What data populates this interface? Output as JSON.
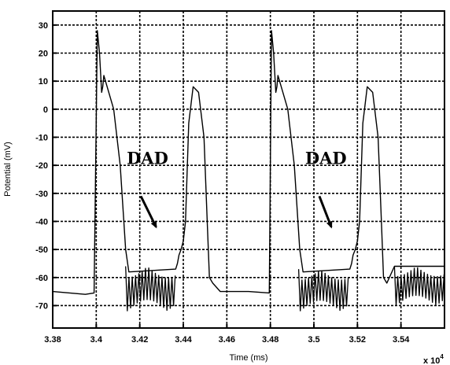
{
  "chart_data": {
    "type": "line",
    "xlabel": "Time (ms)",
    "ylabel": "Potential (mV)",
    "x_exponent_label": "x 10",
    "x_exponent_power": "4",
    "xlim": [
      3.38,
      3.56
    ],
    "ylim": [
      -78,
      35
    ],
    "x_ticks": [
      3.38,
      3.4,
      3.42,
      3.44,
      3.46,
      3.48,
      3.5,
      3.52,
      3.54
    ],
    "x_tick_labels": [
      "3.38",
      "3.4",
      "3.42",
      "3.44",
      "3.46",
      "3.48",
      "3.5",
      "3.52",
      "3.54"
    ],
    "y_ticks": [
      30,
      20,
      10,
      0,
      -10,
      -20,
      -30,
      -40,
      -50,
      -60,
      -70
    ],
    "y_tick_labels": [
      "30",
      "20",
      "10",
      "0",
      "-10",
      "-20",
      "-30",
      "-40",
      "-50",
      "-60",
      "-70"
    ],
    "grid": true,
    "line_color": "#000000",
    "series": [
      {
        "points": [
          [
            3.38,
            -65
          ],
          [
            3.395,
            -66
          ],
          [
            3.399,
            -65.5
          ],
          [
            3.4005,
            28
          ],
          [
            3.4015,
            20
          ],
          [
            3.4025,
            6
          ],
          [
            3.403,
            8
          ],
          [
            3.4035,
            12
          ],
          [
            3.405,
            8
          ],
          [
            3.408,
            0
          ],
          [
            3.411,
            -20
          ],
          [
            3.4135,
            -50
          ],
          [
            3.415,
            -58
          ],
          [
            3.4365,
            -57
          ],
          [
            3.4373,
            -55
          ],
          [
            3.438,
            -52
          ],
          [
            3.439,
            -50
          ],
          [
            3.44,
            -47
          ],
          [
            3.441,
            -40
          ],
          [
            3.4425,
            -5
          ],
          [
            3.4445,
            8
          ],
          [
            3.447,
            6
          ],
          [
            3.4495,
            -10
          ],
          [
            3.451,
            -40
          ],
          [
            3.452,
            -60
          ],
          [
            3.4535,
            -62
          ],
          [
            3.457,
            -65
          ],
          [
            3.47,
            -65
          ],
          [
            3.4795,
            -65.5
          ],
          [
            3.4805,
            28
          ],
          [
            3.4815,
            20
          ],
          [
            3.4825,
            6
          ],
          [
            3.483,
            8
          ],
          [
            3.4835,
            12
          ],
          [
            3.485,
            8
          ],
          [
            3.488,
            0
          ],
          [
            3.491,
            -20
          ],
          [
            3.4935,
            -50
          ],
          [
            3.495,
            -58
          ],
          [
            3.5165,
            -57
          ],
          [
            3.5173,
            -55
          ],
          [
            3.518,
            -52
          ],
          [
            3.519,
            -50
          ],
          [
            3.52,
            -47
          ],
          [
            3.521,
            -40
          ],
          [
            3.5225,
            -5
          ],
          [
            3.5245,
            8
          ],
          [
            3.527,
            6
          ],
          [
            3.5295,
            -10
          ],
          [
            3.531,
            -40
          ],
          [
            3.532,
            -60
          ],
          [
            3.5335,
            -62
          ],
          [
            3.537,
            -56
          ],
          [
            3.56,
            -56
          ]
        ],
        "oscillations": [
          {
            "start": 3.4135,
            "end": 3.4365,
            "low": -72,
            "high": -56
          },
          {
            "start": 3.493,
            "end": 3.5165,
            "low": -72,
            "high": -57
          },
          {
            "start": 3.537,
            "end": 3.56,
            "low": -70,
            "high": -56
          }
        ]
      }
    ],
    "annotations": [
      {
        "text": "DAD",
        "text_x": 3.414,
        "text_y": -19.5,
        "arrow_from": [
          3.4205,
          -31
        ],
        "arrow_to": [
          3.4275,
          -42
        ]
      },
      {
        "text": "DAD",
        "text_x": 3.496,
        "text_y": -19.5,
        "arrow_from": [
          3.5025,
          -31
        ],
        "arrow_to": [
          3.508,
          -42
        ]
      }
    ]
  }
}
